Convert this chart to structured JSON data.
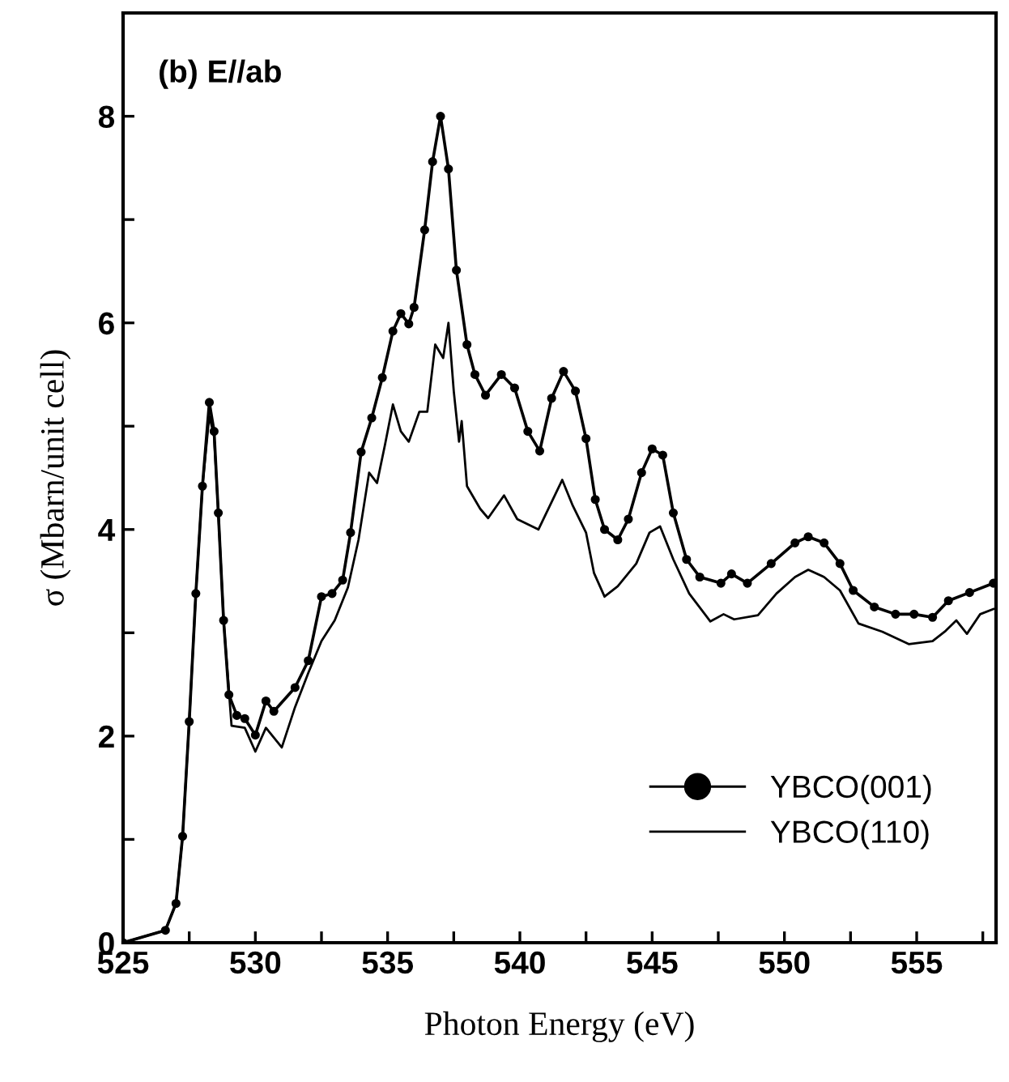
{
  "chart_data": {
    "type": "line",
    "xlabel": "Photon Energy (eV)",
    "ylabel": "σ (Mbarn/unit cell)",
    "annotations": [
      "(b) E//ab"
    ],
    "xlim": [
      525,
      558
    ],
    "ylim": [
      0,
      9
    ],
    "xticks": [
      525,
      {
        "value": 527.5,
        "label": null
      },
      530,
      {
        "value": 532.5,
        "label": null
      },
      535,
      {
        "value": 537.5,
        "label": null
      },
      540,
      {
        "value": 542.5,
        "label": null
      },
      545,
      {
        "value": 547.5,
        "label": null
      },
      550,
      {
        "value": 552.5,
        "label": null
      },
      555,
      {
        "value": 557.5,
        "label": null
      }
    ],
    "yticks": [
      0,
      {
        "value": 1,
        "label": null
      },
      2,
      {
        "value": 3,
        "label": null
      },
      4,
      {
        "value": 5,
        "label": null
      },
      6,
      {
        "value": 7,
        "label": null
      },
      8
    ],
    "grid": false,
    "legend": "bottom right",
    "series": [
      {
        "name": "YBCO(001)",
        "color": "#000000",
        "marker": "circle",
        "x": [
          525,
          526.6,
          527.0,
          527.25,
          527.5,
          527.75,
          528.0,
          528.26,
          528.44,
          528.6,
          528.8,
          529.0,
          529.3,
          529.6,
          530.0,
          530.4,
          530.7,
          531.5,
          532.0,
          532.5,
          532.9,
          533.3,
          533.6,
          534.0,
          534.4,
          534.8,
          535.2,
          535.5,
          535.8,
          536.0,
          536.4,
          536.7,
          537.0,
          537.3,
          537.6,
          538.0,
          538.3,
          538.7,
          539.3,
          539.8,
          540.3,
          540.75,
          541.2,
          541.65,
          542.1,
          542.5,
          542.85,
          543.2,
          543.7,
          544.1,
          544.6,
          545.0,
          545.4,
          545.8,
          546.3,
          546.8,
          547.6,
          548.0,
          548.6,
          549.5,
          550.4,
          550.9,
          551.5,
          552.1,
          552.6,
          553.4,
          554.2,
          554.9,
          555.6,
          556.2,
          557.0,
          557.9
        ],
        "values": [
          0,
          0.12,
          0.38,
          1.03,
          2.14,
          3.38,
          4.42,
          5.23,
          4.95,
          4.16,
          3.12,
          2.4,
          2.2,
          2.17,
          2.01,
          2.34,
          2.24,
          2.47,
          2.73,
          3.35,
          3.38,
          3.51,
          3.97,
          4.75,
          5.08,
          5.47,
          5.92,
          6.09,
          5.99,
          6.15,
          6.9,
          7.56,
          8.0,
          7.49,
          6.51,
          5.79,
          5.5,
          5.3,
          5.5,
          5.37,
          4.95,
          4.76,
          5.27,
          5.53,
          5.34,
          4.88,
          4.29,
          4.0,
          3.9,
          4.1,
          4.55,
          4.78,
          4.72,
          4.16,
          3.71,
          3.54,
          3.48,
          3.57,
          3.48,
          3.67,
          3.87,
          3.93,
          3.87,
          3.67,
          3.41,
          3.25,
          3.18,
          3.18,
          3.15,
          3.31,
          3.39,
          3.48
        ]
      },
      {
        "name": "YBCO(110)",
        "color": "#000000",
        "marker": "none",
        "x": [
          525,
          526.6,
          527.0,
          527.25,
          527.5,
          527.75,
          528.0,
          528.26,
          528.44,
          528.6,
          528.8,
          529.1,
          529.6,
          530.0,
          530.4,
          531.0,
          531.5,
          532.0,
          532.5,
          533.0,
          533.5,
          533.9,
          534.3,
          534.6,
          534.9,
          535.2,
          535.5,
          535.8,
          536.2,
          536.5,
          536.8,
          537.1,
          537.3,
          537.5,
          537.7,
          537.8,
          538.0,
          538.5,
          538.8,
          539.4,
          539.9,
          540.7,
          541.6,
          542.0,
          542.5,
          542.8,
          543.2,
          543.7,
          544.4,
          544.9,
          545.3,
          545.8,
          546.4,
          547.2,
          547.7,
          548.1,
          549.0,
          549.7,
          550.4,
          550.9,
          551.5,
          552.1,
          552.8,
          553.7,
          554.7,
          555.6,
          556.1,
          556.5,
          556.9,
          557.4,
          557.9
        ],
        "values": [
          0,
          0.12,
          0.38,
          1.03,
          2.14,
          3.38,
          4.42,
          5.1,
          4.9,
          4.16,
          3.12,
          2.1,
          2.08,
          1.85,
          2.08,
          1.89,
          2.28,
          2.61,
          2.92,
          3.12,
          3.44,
          3.9,
          4.55,
          4.45,
          4.82,
          5.21,
          4.95,
          4.85,
          5.14,
          5.14,
          5.79,
          5.66,
          6.0,
          5.34,
          4.85,
          5.05,
          4.42,
          4.2,
          4.11,
          4.33,
          4.1,
          4.0,
          4.48,
          4.23,
          3.97,
          3.58,
          3.35,
          3.45,
          3.67,
          3.97,
          4.03,
          3.71,
          3.38,
          3.11,
          3.18,
          3.13,
          3.17,
          3.38,
          3.54,
          3.61,
          3.54,
          3.41,
          3.09,
          3.01,
          2.89,
          2.92,
          3.02,
          3.12,
          2.99,
          3.18,
          3.23
        ]
      }
    ]
  }
}
